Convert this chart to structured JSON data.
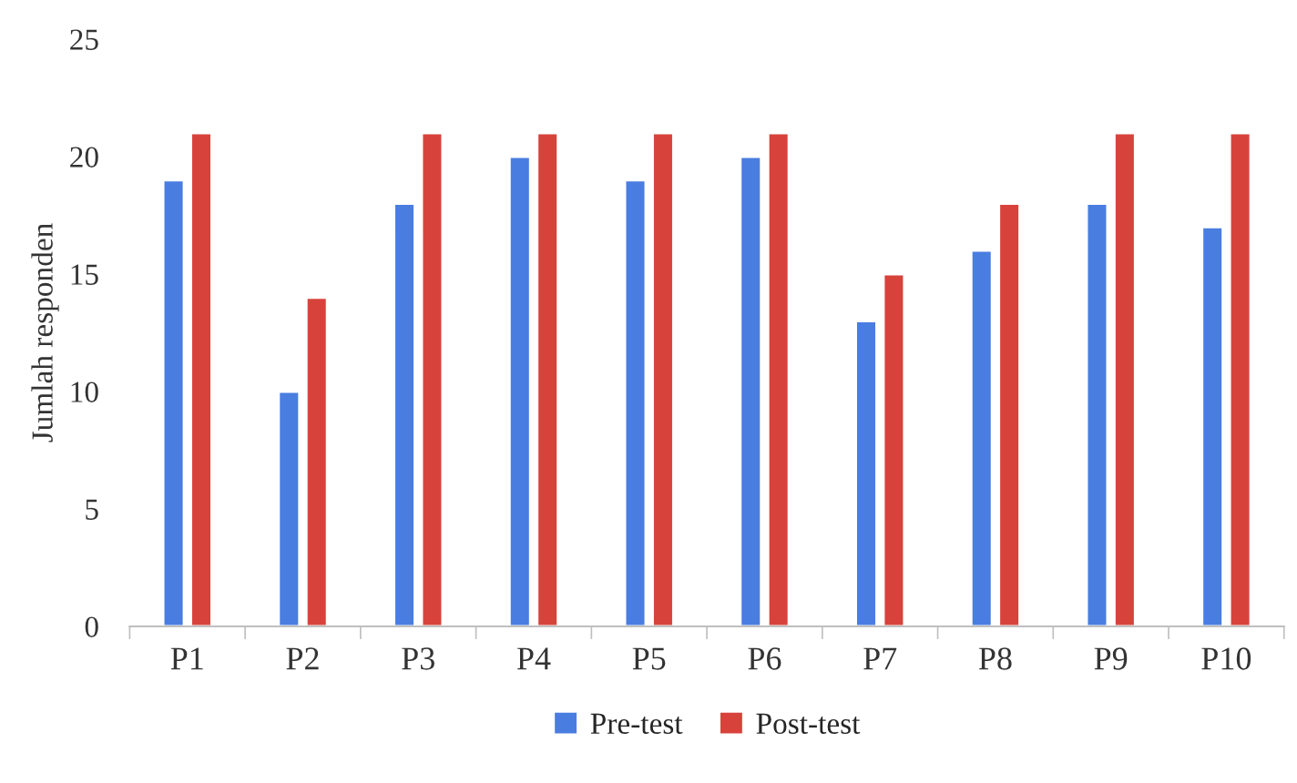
{
  "chart_data": {
    "type": "bar",
    "ylabel": "Jumlah responden",
    "categories": [
      "P1",
      "P2",
      "P3",
      "P4",
      "P5",
      "P6",
      "P7",
      "P8",
      "P9",
      "P10"
    ],
    "series": [
      {
        "name": "Pre-test",
        "color": "#4a7de0",
        "values": [
          19,
          10,
          18,
          20,
          19,
          20,
          13,
          16,
          18,
          17
        ]
      },
      {
        "name": "Post-test",
        "color": "#d7433b",
        "values": [
          21,
          14,
          21,
          21,
          21,
          21,
          15,
          18,
          21,
          21
        ]
      }
    ],
    "ylim": [
      0,
      25
    ],
    "yticks": [
      0,
      5,
      10,
      15,
      20,
      25
    ],
    "grid": false,
    "legend": "bottom"
  }
}
